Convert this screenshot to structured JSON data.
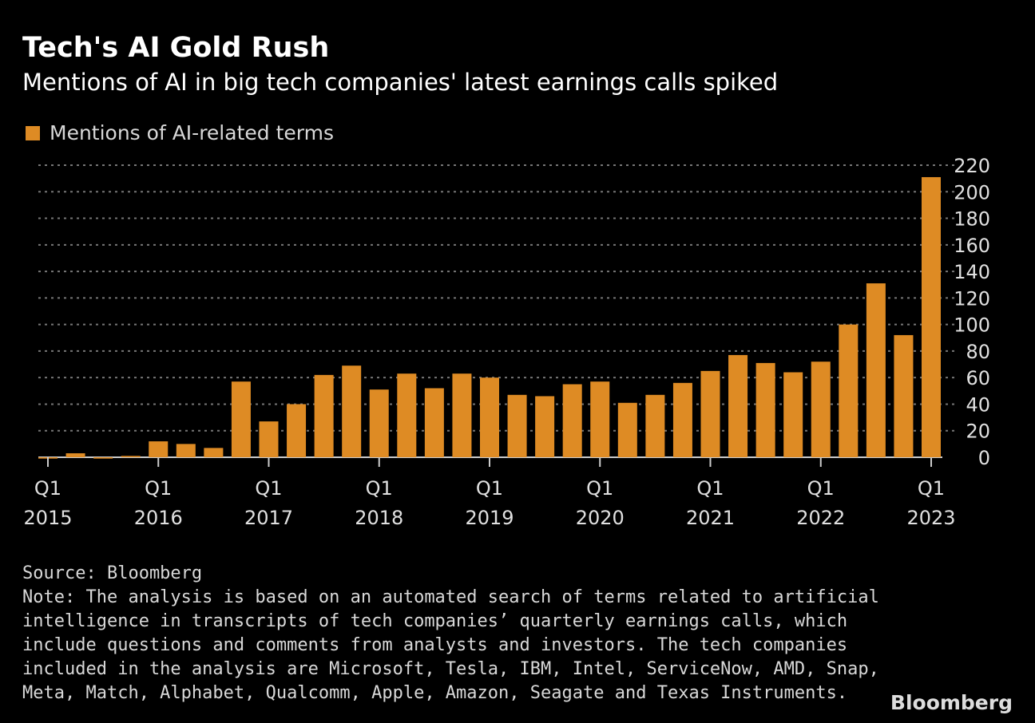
{
  "title": "Tech's AI Gold Rush",
  "subtitle": "Mentions of AI in big tech companies' latest earnings calls spiked",
  "source": "Source: Bloomberg",
  "note": "Note: The analysis is based on an automated search of terms related to artificial intelligence in transcripts of tech companies’ quarterly earnings calls, which include questions and comments from analysts and investors. The tech companies included in the analysis are Microsoft, Tesla, IBM, Intel, ServiceNow, AMD, Snap, Meta, Match, Alphabet, Qualcomm, Apple, Amazon, Seagate and Texas Instruments.",
  "logo": "Bloomberg",
  "colors": {
    "bar": "#de8b24",
    "background": "#000000",
    "grid": "#777777"
  },
  "chart_data": {
    "type": "bar",
    "title": "Tech's AI Gold Rush",
    "legend": "top-left",
    "grid": true,
    "ylim": [
      0,
      220
    ],
    "yticks": [
      0,
      20,
      40,
      60,
      80,
      100,
      120,
      140,
      160,
      180,
      200,
      220
    ],
    "y_axis_side": "right",
    "xtick_labels": [
      {
        "q": "Q1",
        "y": "2015",
        "index": 0
      },
      {
        "q": "Q1",
        "y": "2016",
        "index": 4
      },
      {
        "q": "Q1",
        "y": "2017",
        "index": 8
      },
      {
        "q": "Q1",
        "y": "2018",
        "index": 12
      },
      {
        "q": "Q1",
        "y": "2019",
        "index": 16
      },
      {
        "q": "Q1",
        "y": "2020",
        "index": 20
      },
      {
        "q": "Q1",
        "y": "2021",
        "index": 24
      },
      {
        "q": "Q1",
        "y": "2022",
        "index": 28
      },
      {
        "q": "Q1",
        "y": "2023",
        "index": 32
      }
    ],
    "categories": [
      "Q1 2015",
      "Q2 2015",
      "Q3 2015",
      "Q4 2015",
      "Q1 2016",
      "Q2 2016",
      "Q3 2016",
      "Q4 2016",
      "Q1 2017",
      "Q2 2017",
      "Q3 2017",
      "Q4 2017",
      "Q1 2018",
      "Q2 2018",
      "Q3 2018",
      "Q4 2018",
      "Q1 2019",
      "Q2 2019",
      "Q3 2019",
      "Q4 2019",
      "Q1 2020",
      "Q2 2020",
      "Q3 2020",
      "Q4 2020",
      "Q1 2021",
      "Q2 2021",
      "Q3 2021",
      "Q4 2021",
      "Q1 2022",
      "Q2 2022",
      "Q3 2022",
      "Q4 2022",
      "Q1 2023"
    ],
    "series": [
      {
        "name": "Mentions of AI-related terms",
        "values": [
          -1,
          3,
          -1,
          1,
          12,
          10,
          7,
          57,
          27,
          40,
          62,
          69,
          51,
          63,
          52,
          63,
          60,
          47,
          46,
          55,
          57,
          41,
          47,
          56,
          65,
          77,
          71,
          64,
          72,
          100,
          131,
          92,
          211
        ]
      }
    ]
  }
}
